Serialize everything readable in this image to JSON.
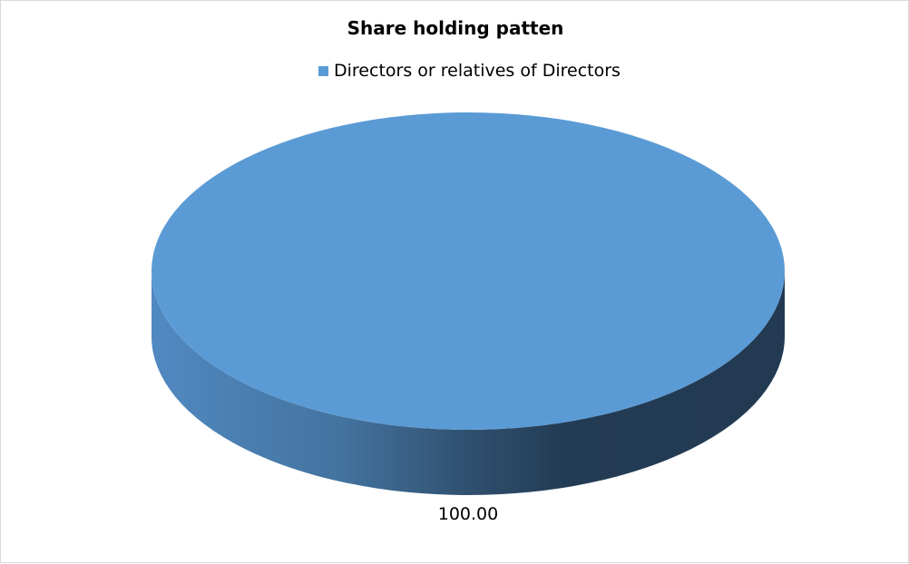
{
  "chart_data": {
    "type": "pie",
    "style": "3d",
    "title": "Share holding patten",
    "categories": [
      "Directors or relatives of Directors"
    ],
    "values": [
      100.0
    ],
    "data_labels": [
      "100.00"
    ],
    "colors": [
      "#5b9bd5"
    ],
    "legend_position": "top"
  }
}
